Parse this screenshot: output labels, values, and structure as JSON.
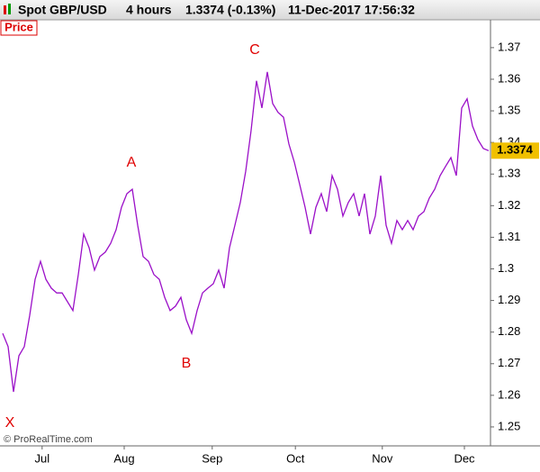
{
  "chart_data": {
    "type": "line",
    "header": {
      "symbol": "Spot GBP/USD",
      "period": "4 hours",
      "change": "1.3374 (-0.13%)",
      "timestamp": "11-Dec-2017 17:56:32"
    },
    "panel_label": "Price",
    "watermark": "© ProRealTime.com",
    "annotations": [
      "X",
      "A",
      "B",
      "C"
    ],
    "x": [
      0,
      1,
      2,
      3,
      4,
      5,
      6,
      7,
      8,
      9,
      10,
      11,
      12,
      13,
      14,
      15,
      16,
      17,
      18,
      19,
      20,
      21,
      22,
      23,
      24,
      25,
      26,
      27,
      28,
      29,
      30,
      31,
      32,
      33,
      34,
      35,
      36,
      37,
      38,
      39,
      40,
      41,
      42,
      43,
      44,
      45,
      46,
      47,
      48,
      49,
      50,
      51,
      52,
      53,
      54,
      55,
      56,
      57,
      58,
      59,
      60,
      61,
      62,
      63,
      64,
      65,
      66,
      67,
      68,
      69,
      70,
      71,
      72,
      73,
      74,
      75,
      76,
      77,
      78,
      79,
      80,
      81,
      82,
      83,
      84,
      85,
      86,
      87,
      88,
      89,
      90
    ],
    "series": [
      {
        "name": "Spot GBP/USD",
        "color": "#9b10c8",
        "values": [
          1.2796,
          1.2754,
          1.2611,
          1.2725,
          1.2754,
          1.2853,
          1.2967,
          1.3024,
          1.2967,
          1.2939,
          1.2924,
          1.2924,
          1.2896,
          1.2868,
          1.2982,
          1.311,
          1.3067,
          1.2996,
          1.3039,
          1.3053,
          1.3081,
          1.3124,
          1.3195,
          1.3238,
          1.3252,
          1.3138,
          1.3039,
          1.3024,
          1.2982,
          1.2967,
          1.291,
          1.2868,
          1.2882,
          1.291,
          1.2839,
          1.2796,
          1.2868,
          1.2924,
          1.2939,
          1.2953,
          1.2996,
          1.2939,
          1.3067,
          1.3138,
          1.321,
          1.3309,
          1.3438,
          1.3595,
          1.3509,
          1.3623,
          1.3523,
          1.3495,
          1.348,
          1.3395,
          1.3338,
          1.3267,
          1.3195,
          1.311,
          1.3195,
          1.3238,
          1.3181,
          1.3295,
          1.3252,
          1.3167,
          1.321,
          1.3238,
          1.3167,
          1.3238,
          1.311,
          1.3167,
          1.3295,
          1.3138,
          1.3081,
          1.3153,
          1.3124,
          1.3153,
          1.3124,
          1.3167,
          1.3181,
          1.3224,
          1.3252,
          1.3295,
          1.3324,
          1.3352,
          1.3295,
          1.3509,
          1.3538,
          1.3452,
          1.3409,
          1.3381,
          1.3374
        ]
      }
    ],
    "last_price": 1.3374,
    "xlim": [
      0,
      90
    ],
    "xticks": [
      {
        "value": 7.3,
        "label": "Jul"
      },
      {
        "value": 22.5,
        "label": "Aug"
      },
      {
        "value": 38.8,
        "label": "Sep"
      },
      {
        "value": 54.2,
        "label": "Oct"
      },
      {
        "value": 70.3,
        "label": "Nov"
      },
      {
        "value": 85.5,
        "label": "Dec"
      }
    ],
    "ylim": [
      1.244,
      1.3788
    ],
    "yticks": [
      1.25,
      1.26,
      1.27,
      1.28,
      1.29,
      1.3,
      1.31,
      1.32,
      1.33,
      1.34,
      1.35,
      1.36,
      1.37
    ],
    "grid": false
  }
}
